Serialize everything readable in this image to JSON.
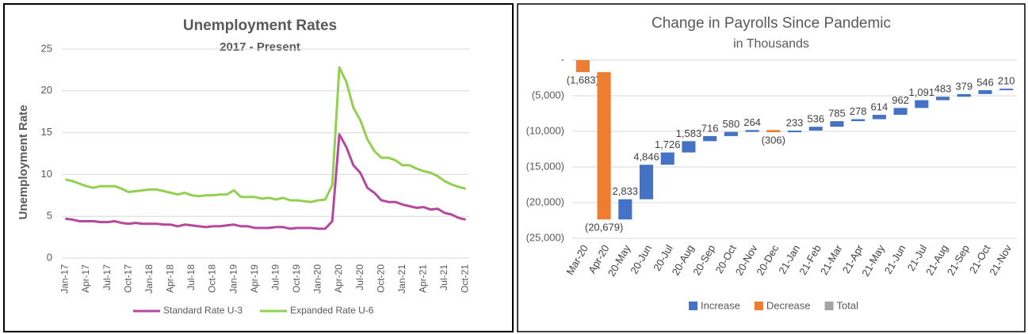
{
  "chart_data": [
    {
      "type": "line",
      "title": "Unemployment Rates",
      "subtitle": "2017 - Present",
      "y_label": "Unemployment Rate",
      "categories": [
        "Jan-17",
        null,
        null,
        "Apr-17",
        null,
        null,
        "Jul-17",
        null,
        null,
        "Oct-17",
        null,
        null,
        "Jan-18",
        null,
        null,
        "Apr-18",
        null,
        null,
        "Jul-18",
        null,
        null,
        "Oct-18",
        null,
        null,
        "Jan-19",
        null,
        null,
        "Apr-19",
        null,
        null,
        "Jul-19",
        null,
        null,
        "Oct-19",
        null,
        null,
        "Jan-20",
        null,
        null,
        "Apr-20",
        null,
        null,
        "Jul-20",
        null,
        null,
        "Oct-20",
        null,
        null,
        "Jan-21",
        null,
        null,
        "Apr-21",
        null,
        null,
        "Jul-21",
        null,
        null,
        "Oct-21"
      ],
      "series": [
        {
          "name": "Standard Rate U-3",
          "color": "#b5489e",
          "values": [
            4.7,
            4.6,
            4.4,
            4.4,
            4.4,
            4.3,
            4.3,
            4.4,
            4.2,
            4.1,
            4.2,
            4.1,
            4.1,
            4.1,
            4.0,
            4.0,
            3.8,
            4.0,
            3.9,
            3.8,
            3.7,
            3.8,
            3.8,
            3.9,
            4.0,
            3.8,
            3.8,
            3.6,
            3.6,
            3.6,
            3.7,
            3.7,
            3.5,
            3.6,
            3.6,
            3.6,
            3.5,
            3.5,
            4.4,
            14.8,
            13.3,
            11.1,
            10.2,
            8.4,
            7.8,
            6.9,
            6.7,
            6.7,
            6.4,
            6.2,
            6.0,
            6.1,
            5.8,
            5.9,
            5.4,
            5.2,
            4.8,
            4.6
          ]
        },
        {
          "name": "Expanded Rate U-6",
          "color": "#92d050",
          "values": [
            9.4,
            9.2,
            8.9,
            8.6,
            8.4,
            8.6,
            8.6,
            8.6,
            8.3,
            7.9,
            8.0,
            8.1,
            8.2,
            8.2,
            8.0,
            7.8,
            7.6,
            7.8,
            7.5,
            7.4,
            7.5,
            7.5,
            7.6,
            7.6,
            8.1,
            7.3,
            7.3,
            7.3,
            7.1,
            7.2,
            7.0,
            7.2,
            6.9,
            6.9,
            6.8,
            6.7,
            6.9,
            7.0,
            8.7,
            22.8,
            21.1,
            18.0,
            16.5,
            14.2,
            12.8,
            12.0,
            12.0,
            11.7,
            11.1,
            11.1,
            10.7,
            10.4,
            10.2,
            9.8,
            9.2,
            8.8,
            8.5,
            8.3
          ]
        }
      ],
      "ylim": [
        0,
        25
      ],
      "yticks": [
        0,
        5,
        10,
        15,
        20,
        25
      ],
      "grid": true,
      "legend": "bottom"
    },
    {
      "type": "waterfall",
      "title": "Change in Payrolls Since Pandemic",
      "subtitle": "in Thousands",
      "categories": [
        "Mar-20",
        "Apr-20",
        "20-May",
        "20-Jun",
        "20-Jul",
        "20-Aug",
        "20-Sep",
        "20-Oct",
        "20-Nov",
        "20-Dec",
        "21-Jan",
        "21-Feb",
        "21-Mar",
        "21-Apr",
        "21-May",
        "21-Jun",
        "21-Jul",
        "21-Aug",
        "21-Sep",
        "21-Oct",
        "21-Nov"
      ],
      "values": [
        -1683,
        -20679,
        2833,
        4846,
        1726,
        1583,
        716,
        580,
        264,
        -306,
        233,
        536,
        785,
        278,
        614,
        962,
        1091,
        483,
        379,
        546,
        210
      ],
      "value_labels": [
        "(1,683)",
        "(20,679)",
        "2,833",
        "4,846",
        "1,726",
        "1,583",
        "716",
        "580",
        "264",
        "(306)",
        "233",
        "536",
        "785",
        "278",
        "614",
        "962",
        "1,091",
        "483",
        "379",
        "546",
        "210"
      ],
      "legend_items": [
        {
          "name": "Increase",
          "color": "#4472c4"
        },
        {
          "name": "Decrease",
          "color": "#ed7d31"
        },
        {
          "name": "Total",
          "color": "#a5a5a5"
        }
      ],
      "ylim": [
        -25000,
        0
      ],
      "yticks": [
        {
          "value": 0,
          "label": "-"
        },
        {
          "value": -5000,
          "label": "(5,000)"
        },
        {
          "value": -10000,
          "label": "(10,000)"
        },
        {
          "value": -15000,
          "label": "(15,000)"
        },
        {
          "value": -20000,
          "label": "(20,000)"
        },
        {
          "value": -25000,
          "label": "(25,000)"
        }
      ],
      "grid": true,
      "legend": "bottom"
    }
  ]
}
